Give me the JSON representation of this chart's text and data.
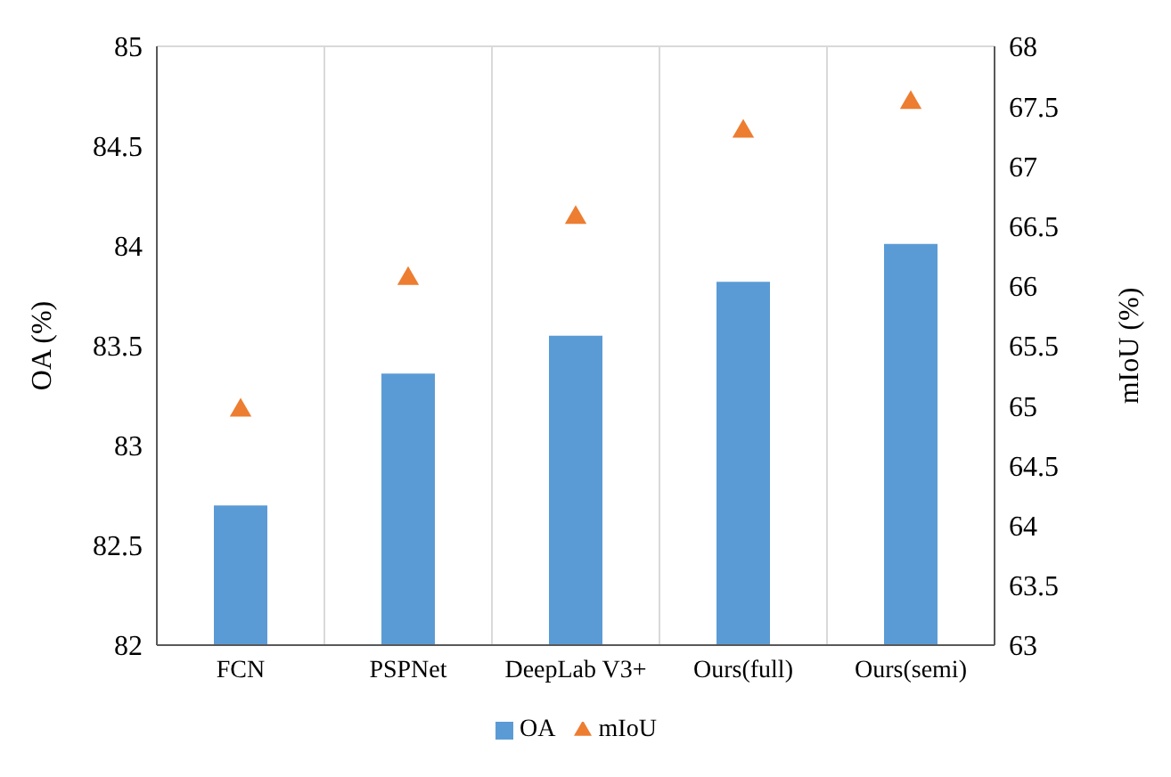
{
  "chart_data": {
    "type": "bar",
    "categories": [
      "FCN",
      "PSPNet",
      "DeepLab V3+",
      "Ours(full)",
      "Ours(semi)"
    ],
    "ylabel": "OA (%)",
    "y2label": "mIoU (%)",
    "series": [
      {
        "name": "OA",
        "color": "#5b9bd5",
        "values": [
          82.7,
          83.36,
          83.55,
          83.82,
          84.01
        ]
      },
      {
        "name": "mIoU",
        "type": "scatter",
        "axis": "y2",
        "marker": "triangle",
        "color": "#ed7d31",
        "values": [
          64.96,
          66.06,
          66.57,
          67.29,
          67.53
        ]
      }
    ],
    "ylim": [
      82,
      85
    ],
    "yticks": [
      82,
      82.5,
      83,
      83.5,
      84,
      84.5,
      85
    ],
    "y2lim": [
      63,
      68
    ],
    "y2ticks": [
      63,
      63.5,
      64,
      64.5,
      65,
      65.5,
      66,
      66.5,
      67,
      67.5,
      68
    ],
    "grid": true,
    "legend": "bottom"
  }
}
